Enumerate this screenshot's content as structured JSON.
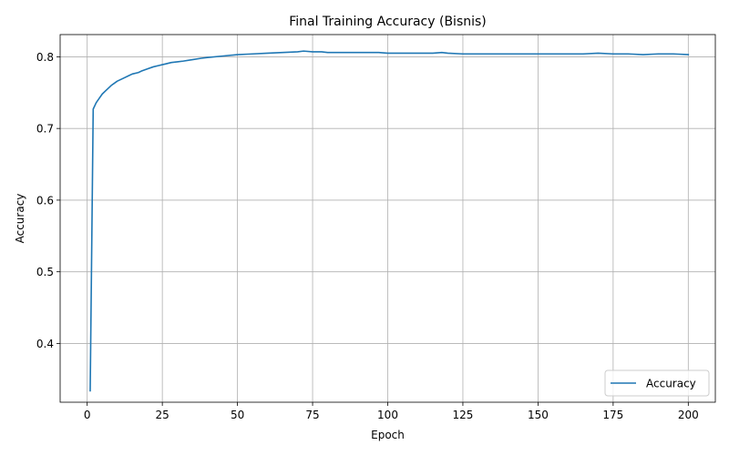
{
  "chart_data": {
    "type": "line",
    "title": "Final Training Accuracy (Bisnis)",
    "xlabel": "Epoch",
    "ylabel": "Accuracy",
    "xlim": [
      -9,
      209
    ],
    "ylim": [
      0.318,
      0.831
    ],
    "xticks": [
      0,
      25,
      50,
      75,
      100,
      125,
      150,
      175,
      200
    ],
    "xtick_labels": [
      "0",
      "25",
      "50",
      "75",
      "100",
      "125",
      "150",
      "175",
      "200"
    ],
    "yticks": [
      0.4,
      0.5,
      0.6,
      0.7,
      0.8
    ],
    "ytick_labels": [
      "0.4",
      "0.5",
      "0.6",
      "0.7",
      "0.8"
    ],
    "grid": true,
    "legend": {
      "position": "lower-right",
      "entries": [
        "Accuracy"
      ]
    },
    "series": [
      {
        "name": "Accuracy",
        "color": "#1f77b4",
        "x": [
          1,
          2,
          3,
          4,
          5,
          6,
          7,
          8,
          9,
          10,
          12,
          14,
          15,
          17,
          18,
          20,
          22,
          24,
          25,
          26,
          28,
          30,
          32,
          35,
          38,
          40,
          45,
          50,
          55,
          60,
          65,
          70,
          72,
          75,
          78,
          80,
          85,
          90,
          95,
          97,
          100,
          105,
          110,
          115,
          118,
          120,
          125,
          130,
          135,
          140,
          145,
          150,
          155,
          160,
          165,
          170,
          175,
          180,
          185,
          190,
          195,
          200
        ],
        "y": [
          0.334,
          0.727,
          0.736,
          0.742,
          0.748,
          0.752,
          0.756,
          0.76,
          0.763,
          0.766,
          0.77,
          0.774,
          0.776,
          0.778,
          0.78,
          0.783,
          0.786,
          0.788,
          0.789,
          0.79,
          0.792,
          0.793,
          0.794,
          0.796,
          0.798,
          0.799,
          0.801,
          0.803,
          0.804,
          0.805,
          0.806,
          0.807,
          0.808,
          0.807,
          0.807,
          0.806,
          0.806,
          0.806,
          0.806,
          0.806,
          0.805,
          0.805,
          0.805,
          0.805,
          0.806,
          0.805,
          0.804,
          0.804,
          0.804,
          0.804,
          0.804,
          0.804,
          0.804,
          0.804,
          0.804,
          0.805,
          0.804,
          0.804,
          0.803,
          0.804,
          0.804,
          0.803
        ]
      }
    ]
  }
}
